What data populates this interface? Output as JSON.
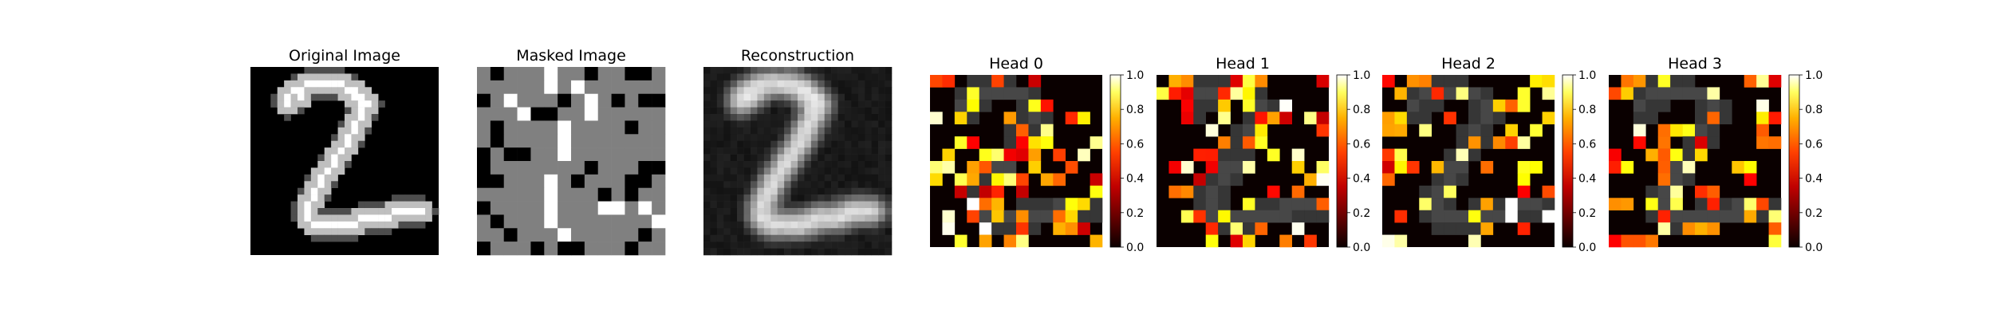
{
  "figure": {
    "panel_titles": {
      "original": "Original Image",
      "masked": "Masked Image",
      "reconstruction": "Reconstruction"
    }
  },
  "chart_data": [
    {
      "type": "heatmap",
      "title": "Original Image",
      "grid": [
        28,
        28
      ],
      "cmap": "gray",
      "axes": "off",
      "content": "MNIST digit 2"
    },
    {
      "type": "heatmap",
      "title": "Masked Image",
      "grid": [
        14,
        14
      ],
      "cmap": "gray",
      "axes": "off",
      "masked_patch_fill": "#808080"
    },
    {
      "type": "heatmap",
      "title": "Reconstruction",
      "grid": [
        28,
        28
      ],
      "cmap": "gray",
      "axes": "off"
    },
    {
      "type": "heatmap",
      "title": "Head 0",
      "grid": [
        14,
        14
      ],
      "cmap": "hot",
      "overlay": "digit",
      "colorbar": {
        "range": [
          0.0,
          1.0
        ],
        "ticks": [
          "0.0",
          "0.2",
          "0.4",
          "0.6",
          "0.8",
          "1.0"
        ]
      }
    },
    {
      "type": "heatmap",
      "title": "Head 1",
      "grid": [
        14,
        14
      ],
      "cmap": "hot",
      "overlay": "digit",
      "colorbar": {
        "range": [
          0.0,
          1.0
        ],
        "ticks": [
          "0.0",
          "0.2",
          "0.4",
          "0.6",
          "0.8",
          "1.0"
        ]
      }
    },
    {
      "type": "heatmap",
      "title": "Head 2",
      "grid": [
        14,
        14
      ],
      "cmap": "hot",
      "overlay": "digit",
      "colorbar": {
        "range": [
          0.0,
          1.0
        ],
        "ticks": [
          "0.0",
          "0.2",
          "0.4",
          "0.6",
          "0.8",
          "1.0"
        ]
      }
    },
    {
      "type": "heatmap",
      "title": "Head 3",
      "grid": [
        14,
        14
      ],
      "cmap": "hot",
      "overlay": "digit",
      "colorbar": {
        "range": [
          0.0,
          1.0
        ],
        "ticks": [
          "0.0",
          "0.2",
          "0.4",
          "0.6",
          "0.8",
          "1.0"
        ]
      }
    }
  ]
}
